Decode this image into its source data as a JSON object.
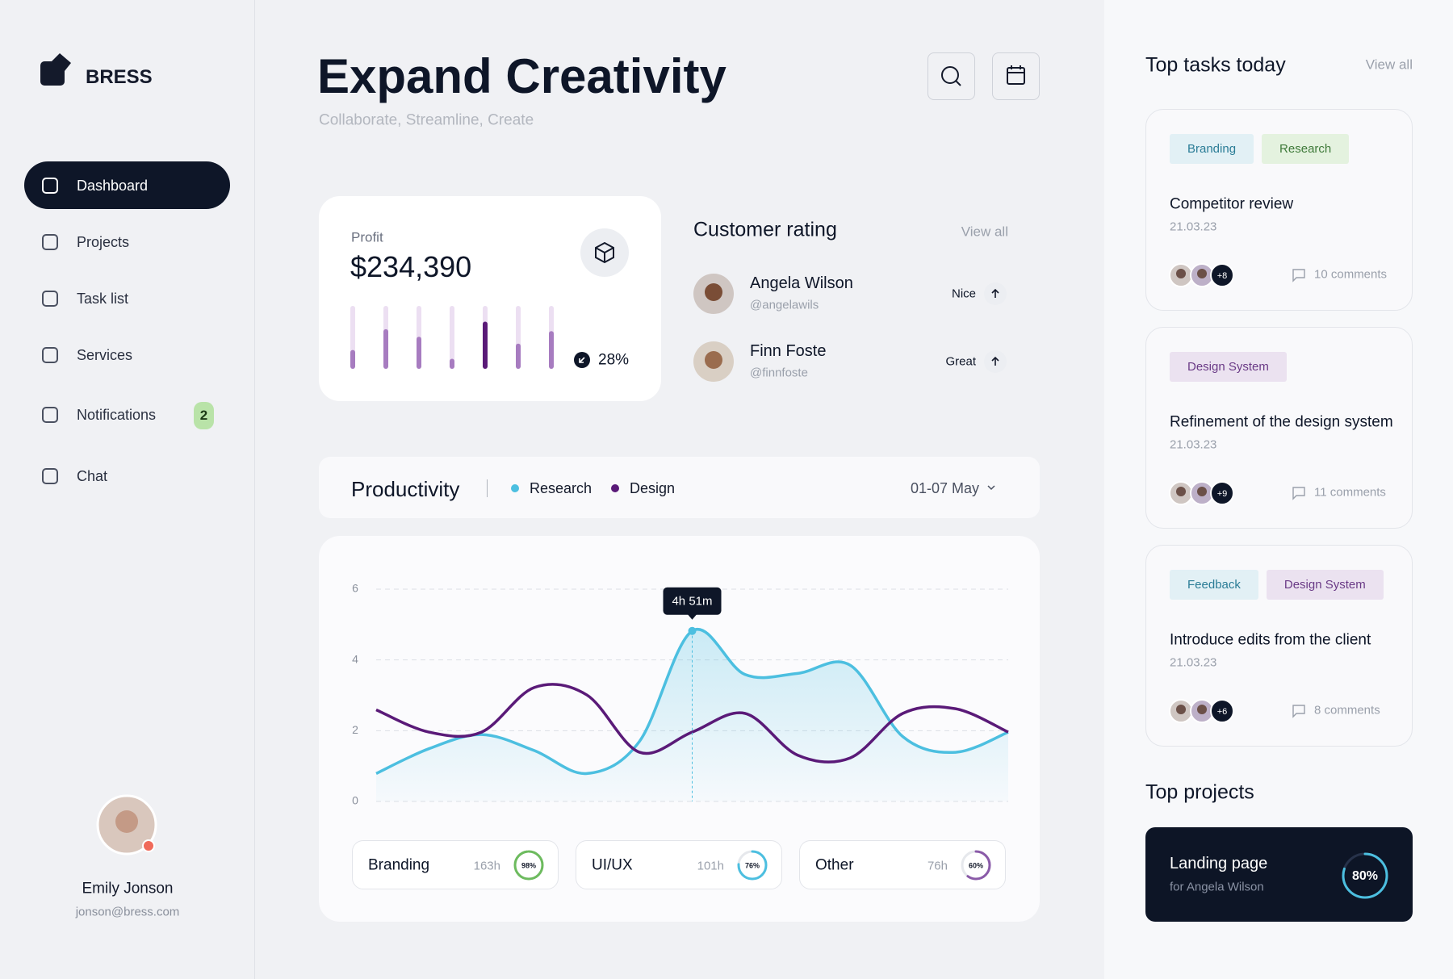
{
  "sidebar": {
    "brand": "BRESS",
    "nav": [
      "Dashboard",
      "Projects",
      "Task list",
      "Services",
      "Notifications",
      "Chat"
    ],
    "badge": "2",
    "user": {
      "name": "Emily Jonson",
      "email": "jonson@bress.com"
    }
  },
  "header": {
    "title": "Expand Creativity",
    "subtitle": "Collaborate, Streamline, Create"
  },
  "profit": {
    "label": "Profit",
    "value": "$234,390",
    "bars": [
      30,
      63,
      51,
      16,
      75,
      40,
      60
    ],
    "change": "28%"
  },
  "rating": {
    "title": "Customer rating",
    "view_all": "View all",
    "people": [
      {
        "name": "Angela Wilson",
        "handle": "@angelawils",
        "rating": "Nice"
      },
      {
        "name": "Finn Foste",
        "handle": "@finnfoste",
        "rating": "Great"
      }
    ]
  },
  "chart_data": {
    "type": "line",
    "title": "Productivity",
    "date_range": "01-07 May",
    "annotation": "4h 51m",
    "categories": [
      null,
      null,
      null,
      null,
      null,
      null,
      null,
      null,
      null,
      null,
      null,
      null,
      null
    ],
    "series": [
      {
        "name": "Research",
        "color": "#4cbfe0",
        "values": [
          0.79,
          1.49,
          1.89,
          1.44,
          0.79,
          1.7,
          4.82,
          3.59,
          3.62,
          3.85,
          1.83,
          1.39,
          1.96
        ]
      },
      {
        "name": "Design",
        "color": "#5a1a78",
        "values": [
          2.59,
          1.96,
          1.96,
          3.22,
          3.01,
          1.39,
          1.96,
          2.49,
          1.31,
          1.23,
          2.49,
          2.62,
          1.96
        ]
      }
    ],
    "ylim": [
      0,
      6
    ],
    "yticks": [
      0,
      2,
      4,
      6
    ],
    "grid": true
  },
  "productivity_summary": [
    {
      "label": "Branding",
      "hours": "163h",
      "color": "#6dbb5e",
      "share": {
        "value": 98,
        "label": "98%"
      }
    },
    {
      "label": "UI/UX",
      "hours": "101h",
      "color": "#4cbfe0",
      "share": {
        "value": 76,
        "label": "76%"
      }
    },
    {
      "label": "Other",
      "hours": "76h",
      "color": "#8a5aa8",
      "share": {
        "value": 60,
        "label": "60%"
      }
    }
  ],
  "tasks": {
    "title": "Top tasks today",
    "view_all": "View all",
    "items": [
      {
        "tags": [
          {
            "text": "Branding",
            "color": "#2a7c96",
            "bg": "#e2f0f5"
          },
          {
            "text": "Research",
            "color": "#3f7a3a",
            "bg": "#e4f2df"
          }
        ],
        "title": "Competitor review",
        "date": "21.03.23",
        "extra": "+8",
        "comments": "10 comments"
      },
      {
        "tags": [
          {
            "text": "Design System",
            "color": "#6a3a86",
            "bg": "#ebe2f0"
          }
        ],
        "title": "Refinement of the design system",
        "date": "21.03.23",
        "extra": "+9",
        "comments": "11 comments"
      },
      {
        "tags": [
          {
            "text": "Feedback",
            "color": "#2a7c96",
            "bg": "#e2f0f5"
          },
          {
            "text": "Design System",
            "color": "#6a3a86",
            "bg": "#ebe2f0"
          }
        ],
        "title": "Introduce edits from the client",
        "date": "21.03.23",
        "extra": "+6",
        "comments": "8 comments"
      }
    ]
  },
  "projects": {
    "title": "Top projects",
    "items": [
      {
        "name": "Landing page",
        "client": "for Angela Wilson",
        "progress": {
          "value": 80,
          "label": "80%"
        }
      }
    ]
  }
}
